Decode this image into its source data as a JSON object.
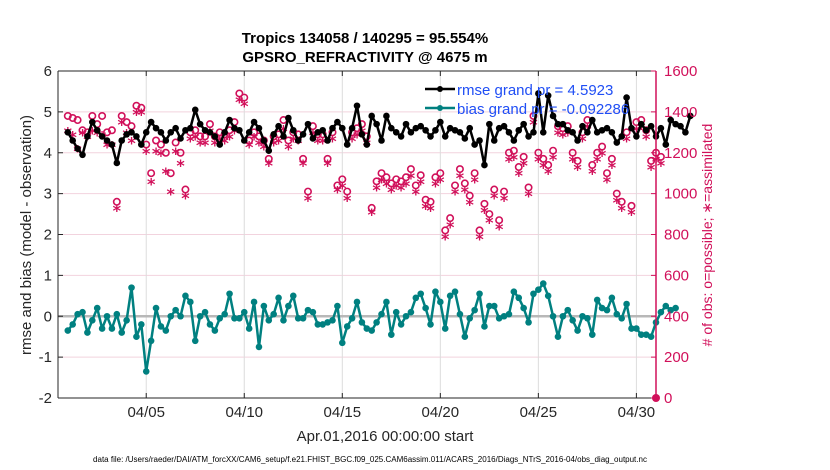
{
  "chart_data": {
    "type": "line",
    "title": "Tropics 134058 / 140295 = 95.554%",
    "subtitle": "GPSRO_REFRACTIVITY @ 4675 m",
    "xlabel": "Apr.01,2016 00:00:00 start",
    "ylabel": "rmse and bias (model - observation)",
    "ylabel_right": "# of obs: o=possible; ∗=assimilated",
    "footnote": "data file: /Users/raeder/DAI/ATM_forcXX/CAM6_setup/f.e21.FHIST_BGC.f09_025.CAM6assim.011/ACARS_2016/Diags_NTrS_2016-04/obs_diag_output.nc",
    "xlim": [
      0.5,
      31
    ],
    "ylim": [
      -2,
      6
    ],
    "ylim_right": [
      0,
      1600
    ],
    "x_ticks": [
      5,
      10,
      15,
      20,
      25,
      30
    ],
    "x_tick_labels": [
      "04/05",
      "04/10",
      "04/15",
      "04/20",
      "04/25",
      "04/30"
    ],
    "y_ticks": [
      -2,
      -1,
      0,
      1,
      2,
      3,
      4,
      5,
      6
    ],
    "y_tick_labels": [
      "-2",
      "-1",
      "0",
      "1",
      "2",
      "3",
      "4",
      "5",
      "6"
    ],
    "y_ticks_right": [
      0,
      200,
      400,
      600,
      800,
      1000,
      1200,
      1400,
      1600
    ],
    "y_tick_labels_right": [
      "0",
      "200",
      "400",
      "600",
      "800",
      "1000",
      "1200",
      "1400",
      "1600"
    ],
    "grid": true,
    "legend_position": "top-right",
    "legend": [
      {
        "label": "rmse grand pr = 4.5923",
        "color": "#000000"
      },
      {
        "label": "bias grand pr = -0.092286",
        "color": "#008080"
      }
    ],
    "colors": {
      "rmse": "#000000",
      "bias": "#008080",
      "obs": "#d1105a",
      "zero_line": "#b8b8b8",
      "grid": "#f2d3de"
    },
    "x_start_day": 1.0,
    "x_step_days": 0.25,
    "series": [
      {
        "name": "rmse",
        "axis": "left",
        "values": [
          4.5,
          4.3,
          4.1,
          3.95,
          4.4,
          4.75,
          4.55,
          4.4,
          4.3,
          4.2,
          3.75,
          4.3,
          4.45,
          4.5,
          4.4,
          4.2,
          4.5,
          4.75,
          4.6,
          4.5,
          4.3,
          4.5,
          4.6,
          4.35,
          4.55,
          4.6,
          5.05,
          4.7,
          4.55,
          4.5,
          4.4,
          4.2,
          4.5,
          4.8,
          4.6,
          4.55,
          4.3,
          4.5,
          4.75,
          4.6,
          4.3,
          4.05,
          4.45,
          4.65,
          4.4,
          4.85,
          4.55,
          4.3,
          4.45,
          4.7,
          4.35,
          4.5,
          4.55,
          4.3,
          4.6,
          4.75,
          4.6,
          4.2,
          4.6,
          5.15,
          4.45,
          4.2,
          4.9,
          4.7,
          4.3,
          4.9,
          4.6,
          4.5,
          4.4,
          4.7,
          4.5,
          4.6,
          4.65,
          4.55,
          4.4,
          4.55,
          4.75,
          4.4,
          4.6,
          4.55,
          4.5,
          4.35,
          4.6,
          4.2,
          4.3,
          3.7,
          4.7,
          4.3,
          4.6,
          4.65,
          4.5,
          4.3,
          4.55,
          4.7,
          4.4,
          4.5,
          5.45,
          4.5,
          5.4,
          4.9,
          4.7,
          4.7,
          4.55,
          4.5,
          4.3,
          4.65,
          4.5,
          4.8,
          4.5,
          4.55,
          4.6,
          4.5,
          4.25,
          4.4,
          5.35,
          4.6,
          4.4,
          4.7,
          4.55,
          4.65,
          4.4,
          4.6,
          4.2,
          4.8,
          4.7,
          4.65,
          4.5,
          4.9
        ]
      },
      {
        "name": "bias",
        "axis": "left",
        "values": [
          -0.35,
          -0.2,
          0.05,
          0.1,
          -0.4,
          -0.1,
          0.2,
          -0.3,
          0.0,
          -0.3,
          0.05,
          -0.4,
          -0.1,
          0.7,
          -0.5,
          -0.2,
          -1.35,
          -0.6,
          0.2,
          -0.25,
          -0.35,
          0.0,
          0.15,
          0.0,
          0.5,
          0.35,
          -0.6,
          0.0,
          0.1,
          -0.2,
          -0.35,
          -0.05,
          0.05,
          0.55,
          -0.05,
          -0.05,
          0.1,
          -0.3,
          0.35,
          -0.75,
          0.25,
          -0.1,
          0.05,
          0.45,
          -0.1,
          0.25,
          0.5,
          -0.05,
          -0.05,
          0.15,
          0.1,
          -0.2,
          -0.2,
          -0.15,
          -0.1,
          0.25,
          -0.65,
          -0.25,
          -0.05,
          0.35,
          -0.15,
          -0.3,
          -0.35,
          -0.15,
          0.05,
          0.35,
          -0.45,
          0.1,
          -0.2,
          0.0,
          0.1,
          0.45,
          0.55,
          0.2,
          -0.2,
          0.6,
          0.35,
          -0.3,
          0.5,
          0.6,
          0.05,
          -0.5,
          -0.05,
          0.15,
          0.55,
          -0.25,
          0.25,
          0.25,
          -0.05,
          0.0,
          0.05,
          0.6,
          0.45,
          0.2,
          -0.15,
          0.55,
          0.65,
          0.8,
          0.5,
          0.0,
          -0.5,
          0.0,
          0.15,
          -0.1,
          -0.35,
          0.0,
          -0.05,
          -0.45,
          0.4,
          0.2,
          0.15,
          0.45,
          0.05,
          -0.05,
          0.3,
          -0.3,
          -0.3,
          -0.45,
          -0.45,
          -0.5,
          -0.15,
          0.1,
          0.25,
          0.15,
          0.2
        ]
      },
      {
        "name": "obs_possible",
        "axis": "right",
        "marker": "o",
        "values": [
          1380,
          1370,
          1360,
          1310,
          1300,
          1380,
          1340,
          1380,
          1300,
          1310,
          960,
          1380,
          1350,
          1330,
          1430,
          1420,
          1240,
          1100,
          1260,
          1240,
          1200,
          1100,
          1250,
          1200,
          1020,
          1300,
          1310,
          1280,
          1280,
          1340,
          1280,
          1300,
          1290,
          1310,
          1350,
          1490,
          1470,
          1260,
          1300,
          1280,
          1260,
          1170,
          1280,
          1290,
          1360,
          1260,
          1300,
          1290,
          1170,
          1010,
          1330,
          1290,
          1290,
          1170,
          1300,
          1040,
          1070,
          1010,
          1300,
          1320,
          1340,
          1280,
          930,
          1060,
          1100,
          1080,
          1050,
          1070,
          1060,
          1080,
          1120,
          1040,
          1090,
          970,
          960,
          1080,
          1100,
          820,
          880,
          1040,
          1120,
          1050,
          990,
          1100,
          820,
          950,
          900,
          1020,
          870,
          1010,
          1200,
          1210,
          1130,
          1180,
          1030,
          1380,
          1200,
          1170,
          1140,
          1210,
          1330,
          1320,
          1330,
          1200,
          1160,
          1300,
          1360,
          1140,
          1200,
          1230,
          1100,
          1170,
          1000,
          960,
          1300,
          940,
          1350,
          1360,
          1310,
          1160,
          1200,
          1180
        ]
      },
      {
        "name": "obs_assimilated",
        "axis": "right",
        "marker": "*",
        "values": [
          1300,
          1280,
          1210,
          1290,
          1270,
          1300,
          1290,
          1280,
          1230,
          1230,
          920,
          1340,
          1290,
          1250,
          1390,
          1390,
          1200,
          1050,
          1200,
          1190,
          1100,
          1000,
          1200,
          1140,
          980,
          1260,
          1270,
          1240,
          1240,
          1300,
          1240,
          1260,
          1250,
          1270,
          1300,
          1450,
          1430,
          1230,
          1270,
          1240,
          1220,
          1140,
          1240,
          1250,
          1310,
          1220,
          1260,
          1250,
          1140,
          970,
          1290,
          1250,
          1250,
          1140,
          1260,
          1010,
          1030,
          970,
          1260,
          1280,
          1300,
          1240,
          900,
          1020,
          1060,
          1040,
          1010,
          1030,
          1020,
          1040,
          1080,
          1000,
          1050,
          930,
          920,
          1040,
          1060,
          780,
          840,
          1000,
          1080,
          1010,
          950,
          1060,
          780,
          910,
          860,
          980,
          830,
          970,
          1160,
          1170,
          1090,
          1140,
          990,
          1340,
          1160,
          1130,
          1100,
          1170,
          1290,
          1280,
          1290,
          1160,
          1120,
          1260,
          1320,
          1100,
          1160,
          1190,
          1060,
          1130,
          960,
          920,
          1260,
          900,
          1310,
          1320,
          1270,
          1120,
          1160,
          1140
        ]
      }
    ]
  }
}
